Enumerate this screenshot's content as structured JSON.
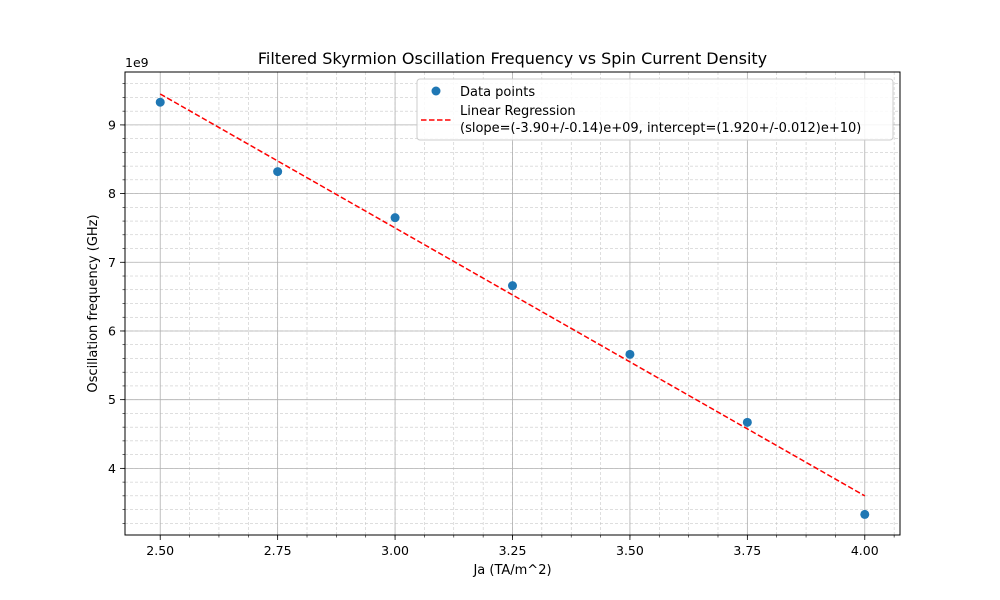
{
  "chart_data": {
    "type": "scatter",
    "title": "Filtered Skyrmion Oscillation Frequency vs Spin Current Density",
    "xlabel": "Ja (TA/m^2)",
    "ylabel": "Oscillation frequency (GHz)",
    "y_offset_label": "1e9",
    "xlim": [
      2.425,
      4.075
    ],
    "ylim": [
      3.03,
      9.77
    ],
    "x_ticks": [
      2.5,
      2.75,
      3.0,
      3.25,
      3.5,
      3.75,
      4.0
    ],
    "x_tick_labels": [
      "2.50",
      "2.75",
      "3.00",
      "3.25",
      "3.50",
      "3.75",
      "4.00"
    ],
    "y_ticks": [
      4,
      5,
      6,
      7,
      8,
      9
    ],
    "y_tick_labels": [
      "4",
      "5",
      "6",
      "7",
      "8",
      "9"
    ],
    "grid": true,
    "minor_grid": true,
    "legend_position": "top-right",
    "series": [
      {
        "name": "Data points",
        "kind": "scatter",
        "color": "#1f77b4",
        "x": [
          2.5,
          2.75,
          3.0,
          3.25,
          3.5,
          3.75,
          4.0
        ],
        "y": [
          9.33,
          8.32,
          7.65,
          6.66,
          5.66,
          4.67,
          3.33
        ]
      },
      {
        "name": "Linear Regression\n(slope=(-3.90+/-0.14)e+09, intercept=(1.920+/-0.012)e+10)",
        "kind": "line",
        "style": "dashed",
        "color": "#ff0000",
        "x": [
          2.5,
          4.0
        ],
        "y": [
          9.45,
          3.6
        ]
      }
    ]
  }
}
